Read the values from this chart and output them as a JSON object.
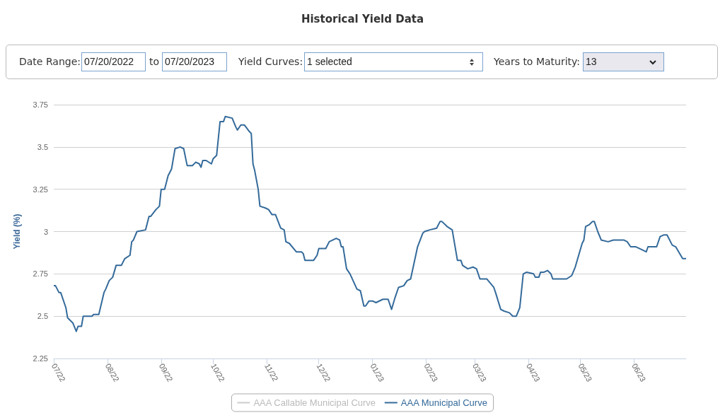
{
  "chart_data": {
    "type": "line",
    "title": "Historical Yield Data",
    "ylabel": "Yield (%)",
    "annotations": [
      "Date Range:",
      "07/20/2022",
      "to",
      "07/20/2023",
      "Yield Curves:",
      "1 selected",
      "Years to Maturity:",
      "13"
    ],
    "xlim": [
      "2022-07-20",
      "2023-07-20"
    ],
    "xticks": [
      {
        "value": "2022-07-20",
        "label": "07/22"
      },
      {
        "value": "2022-08-20",
        "label": "08/22"
      },
      {
        "value": "2022-09-20",
        "label": "09/22"
      },
      {
        "value": "2022-10-20",
        "label": "10/22"
      },
      {
        "value": "2022-11-20",
        "label": "11/22"
      },
      {
        "value": "2022-12-20",
        "label": "12/22"
      },
      {
        "value": "2023-01-20",
        "label": "01/23"
      },
      {
        "value": "2023-02-20",
        "label": "02/23"
      },
      {
        "value": "2023-03-20",
        "label": "03/23"
      },
      {
        "value": "2023-04-20",
        "label": "04/23"
      },
      {
        "value": "2023-05-20",
        "label": "05/23"
      },
      {
        "value": "2023-06-20",
        "label": "06/23"
      }
    ],
    "ylim": [
      2.25,
      3.75
    ],
    "yticks": [
      2.25,
      2.5,
      2.75,
      3,
      3.25,
      3.5,
      3.75
    ],
    "grid": "y",
    "legend": "bottom",
    "marker": "none",
    "line_style": "solid",
    "series": [
      {
        "name": "AAA Callable Municipal Curve",
        "color": "#cccccc"
      },
      {
        "name": "AAA Municipal Curve",
        "color": "#346a9a",
        "x": [
          "2022-07-20",
          "2022-07-21",
          "2022-07-23",
          "2022-07-24",
          "2022-07-26",
          "2022-07-27",
          "2022-07-28",
          "2022-07-31",
          "2022-08-02",
          "2022-08-03",
          "2022-08-05",
          "2022-08-06",
          "2022-08-09",
          "2022-08-11",
          "2022-08-12",
          "2022-08-15",
          "2022-08-18",
          "2022-08-19",
          "2022-08-21",
          "2022-08-23",
          "2022-08-25",
          "2022-08-28",
          "2022-08-30",
          "2022-09-02",
          "2022-09-03",
          "2022-09-04",
          "2022-09-06",
          "2022-09-11",
          "2022-09-13",
          "2022-09-14",
          "2022-09-17",
          "2022-09-19",
          "2022-09-20",
          "2022-09-22",
          "2022-09-24",
          "2022-09-26",
          "2022-09-28",
          "2022-10-01",
          "2022-10-03",
          "2022-10-05",
          "2022-10-08",
          "2022-10-10",
          "2022-10-12",
          "2022-10-13",
          "2022-10-14",
          "2022-10-16",
          "2022-10-19",
          "2022-10-20",
          "2022-10-22",
          "2022-10-24",
          "2022-10-26",
          "2022-10-27",
          "2022-10-31",
          "2022-11-02",
          "2022-11-03",
          "2022-11-05",
          "2022-11-07",
          "2022-11-10",
          "2022-11-11",
          "2022-11-12",
          "2022-11-13",
          "2022-11-15",
          "2022-11-16",
          "2022-11-19",
          "2022-11-21",
          "2022-11-23",
          "2022-11-25",
          "2022-11-28",
          "2022-11-30",
          "2022-12-01",
          "2022-12-03",
          "2022-12-07",
          "2022-12-10",
          "2022-12-11",
          "2022-12-12",
          "2022-12-17",
          "2022-12-19",
          "2022-12-20",
          "2022-12-24",
          "2022-12-26",
          "2022-12-30",
          "2023-01-01",
          "2023-01-02",
          "2023-01-03",
          "2023-01-05",
          "2023-01-07",
          "2023-01-11",
          "2023-01-13",
          "2023-01-15",
          "2023-01-16",
          "2023-01-18",
          "2023-01-20",
          "2023-01-22",
          "2023-01-26",
          "2023-01-29",
          "2023-01-31",
          "2023-02-02",
          "2023-02-04",
          "2023-02-07",
          "2023-02-09",
          "2023-02-11",
          "2023-02-15",
          "2023-02-18",
          "2023-02-19",
          "2023-02-22",
          "2023-02-26",
          "2023-02-28",
          "2023-03-01",
          "2023-03-04",
          "2023-03-07",
          "2023-03-10",
          "2023-03-12",
          "2023-03-13",
          "2023-03-16",
          "2023-03-19",
          "2023-03-21",
          "2023-03-23",
          "2023-03-27",
          "2023-03-31",
          "2023-04-01",
          "2023-04-04",
          "2023-04-06",
          "2023-04-09",
          "2023-04-11",
          "2023-04-13",
          "2023-04-15",
          "2023-04-17",
          "2023-04-19",
          "2023-04-23",
          "2023-04-24",
          "2023-04-26",
          "2023-04-27",
          "2023-04-29",
          "2023-05-01",
          "2023-05-03",
          "2023-05-04",
          "2023-05-08",
          "2023-05-12",
          "2023-05-15",
          "2023-05-17",
          "2023-05-19",
          "2023-05-21",
          "2023-05-22",
          "2023-05-23",
          "2023-05-25",
          "2023-05-27",
          "2023-05-28",
          "2023-05-30",
          "2023-06-01",
          "2023-06-05",
          "2023-06-08",
          "2023-06-14",
          "2023-06-16",
          "2023-06-18",
          "2023-06-21",
          "2023-06-23",
          "2023-06-27",
          "2023-06-28",
          "2023-07-03",
          "2023-07-05",
          "2023-07-07",
          "2023-07-09",
          "2023-07-12",
          "2023-07-14",
          "2023-07-18",
          "2023-07-20"
        ],
        "values": [
          2.68,
          2.68,
          2.64,
          2.64,
          2.58,
          2.55,
          2.49,
          2.46,
          2.41,
          2.44,
          2.44,
          2.5,
          2.5,
          2.5,
          2.51,
          2.51,
          2.64,
          2.66,
          2.71,
          2.73,
          2.8,
          2.8,
          2.84,
          2.86,
          2.94,
          2.95,
          3.0,
          3.01,
          3.09,
          3.09,
          3.13,
          3.15,
          3.25,
          3.25,
          3.33,
          3.37,
          3.49,
          3.5,
          3.49,
          3.39,
          3.39,
          3.41,
          3.4,
          3.38,
          3.42,
          3.42,
          3.4,
          3.43,
          3.45,
          3.65,
          3.65,
          3.68,
          3.67,
          3.62,
          3.6,
          3.63,
          3.63,
          3.59,
          3.58,
          3.4,
          3.36,
          3.25,
          3.15,
          3.14,
          3.13,
          3.1,
          3.1,
          3.02,
          3.01,
          2.94,
          2.93,
          2.88,
          2.88,
          2.87,
          2.83,
          2.83,
          2.86,
          2.9,
          2.9,
          2.94,
          2.96,
          2.95,
          2.91,
          2.91,
          2.78,
          2.75,
          2.66,
          2.65,
          2.56,
          2.56,
          2.59,
          2.59,
          2.58,
          2.6,
          2.6,
          2.54,
          2.61,
          2.67,
          2.68,
          2.71,
          2.72,
          2.91,
          2.99,
          3.0,
          3.01,
          3.02,
          3.06,
          3.06,
          3.03,
          3.01,
          2.83,
          2.83,
          2.8,
          2.78,
          2.79,
          2.78,
          2.72,
          2.72,
          2.67,
          2.64,
          2.54,
          2.53,
          2.52,
          2.5,
          2.5,
          2.55,
          2.75,
          2.76,
          2.75,
          2.73,
          2.73,
          2.76,
          2.76,
          2.77,
          2.75,
          2.72,
          2.72,
          2.72,
          2.74,
          2.79,
          2.86,
          2.93,
          2.95,
          3.03,
          3.04,
          3.06,
          3.06,
          3.0,
          2.95,
          2.94,
          2.95,
          2.95,
          2.94,
          2.91,
          2.91,
          2.9,
          2.88,
          2.91,
          2.91,
          2.97,
          2.98,
          2.98,
          2.92,
          2.91,
          2.84,
          2.84
        ]
      }
    ]
  }
}
